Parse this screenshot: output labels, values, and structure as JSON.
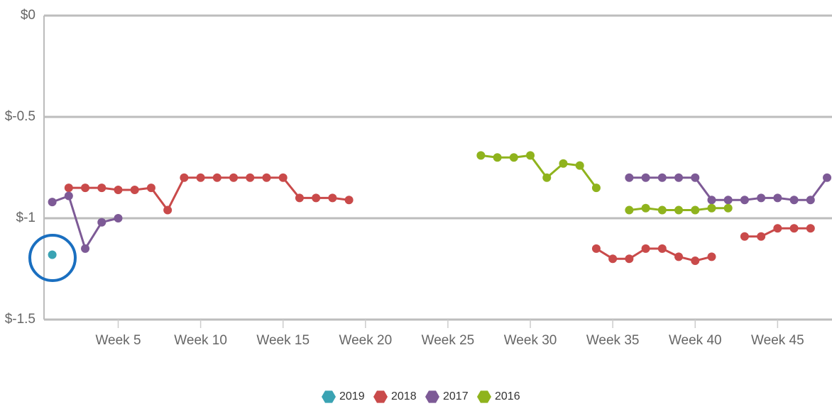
{
  "chart_data": {
    "type": "line",
    "x": [
      1,
      2,
      3,
      4,
      5,
      6,
      7,
      8,
      9,
      10,
      11,
      12,
      13,
      14,
      15,
      16,
      17,
      18,
      19,
      20,
      21,
      22,
      23,
      24,
      25,
      26,
      27,
      28,
      29,
      30,
      31,
      32,
      33,
      34,
      35,
      36,
      37,
      38,
      39,
      40,
      41,
      42,
      43,
      44,
      45,
      46,
      47,
      48
    ],
    "xlim": [
      0.5,
      48.3
    ],
    "xticks": [
      {
        "value": 5,
        "label": "Week 5"
      },
      {
        "value": 10,
        "label": "Week 10"
      },
      {
        "value": 15,
        "label": "Week 15"
      },
      {
        "value": 20,
        "label": "Week 20"
      },
      {
        "value": 25,
        "label": "Week 25"
      },
      {
        "value": 30,
        "label": "Week 30"
      },
      {
        "value": 35,
        "label": "Week 35"
      },
      {
        "value": 40,
        "label": "Week 40"
      },
      {
        "value": 45,
        "label": "Week 45"
      }
    ],
    "ylim": [
      -1.5,
      0
    ],
    "yticks": [
      {
        "value": 0,
        "label": "$0"
      },
      {
        "value": -0.5,
        "label": "$-0.5"
      },
      {
        "value": -1,
        "label": "$-1"
      },
      {
        "value": -1.5,
        "label": "$-1.5"
      }
    ],
    "grid": true,
    "legend": "bottom",
    "series": [
      {
        "name": "2019",
        "color": "#3aa3b3",
        "values": [
          -1.18,
          null,
          null,
          null,
          null,
          null,
          null,
          null,
          null,
          null,
          null,
          null,
          null,
          null,
          null,
          null,
          null,
          null,
          null,
          null,
          null,
          null,
          null,
          null,
          null,
          null,
          null,
          null,
          null,
          null,
          null,
          null,
          null,
          null,
          null,
          null,
          null,
          null,
          null,
          null,
          null,
          null,
          null,
          null,
          null,
          null,
          null,
          null
        ]
      },
      {
        "name": "2018",
        "color": "#c94a4a",
        "values": [
          null,
          -0.85,
          -0.85,
          -0.85,
          -0.86,
          -0.86,
          -0.85,
          -0.96,
          -0.8,
          -0.8,
          -0.8,
          -0.8,
          -0.8,
          -0.8,
          -0.8,
          -0.9,
          -0.9,
          -0.9,
          -0.91,
          null,
          null,
          null,
          null,
          null,
          null,
          null,
          null,
          null,
          null,
          null,
          null,
          null,
          null,
          -1.15,
          -1.2,
          -1.2,
          -1.15,
          -1.15,
          -1.19,
          -1.21,
          -1.19,
          null,
          -1.09,
          -1.09,
          -1.05,
          -1.05,
          -1.05,
          null
        ]
      },
      {
        "name": "2017",
        "color": "#7d5a96",
        "values": [
          -0.92,
          -0.89,
          -1.15,
          -1.02,
          -1.0,
          null,
          null,
          null,
          null,
          null,
          null,
          null,
          null,
          null,
          null,
          null,
          null,
          null,
          null,
          null,
          null,
          null,
          null,
          null,
          null,
          null,
          null,
          null,
          null,
          null,
          null,
          null,
          null,
          null,
          null,
          -0.8,
          -0.8,
          -0.8,
          -0.8,
          -0.8,
          -0.91,
          -0.91,
          -0.91,
          -0.9,
          -0.9,
          -0.91,
          -0.91,
          -0.8
        ]
      },
      {
        "name": "2016",
        "color": "#8fb31d",
        "values": [
          null,
          null,
          null,
          null,
          null,
          null,
          null,
          null,
          null,
          null,
          null,
          null,
          null,
          null,
          null,
          null,
          null,
          null,
          null,
          null,
          null,
          null,
          null,
          null,
          null,
          null,
          -0.69,
          -0.7,
          -0.7,
          -0.69,
          -0.8,
          -0.73,
          -0.74,
          -0.85,
          null,
          -0.96,
          -0.95,
          -0.96,
          -0.96,
          -0.96,
          -0.95,
          -0.95,
          null,
          null,
          null,
          null,
          null,
          null
        ]
      }
    ]
  }
}
